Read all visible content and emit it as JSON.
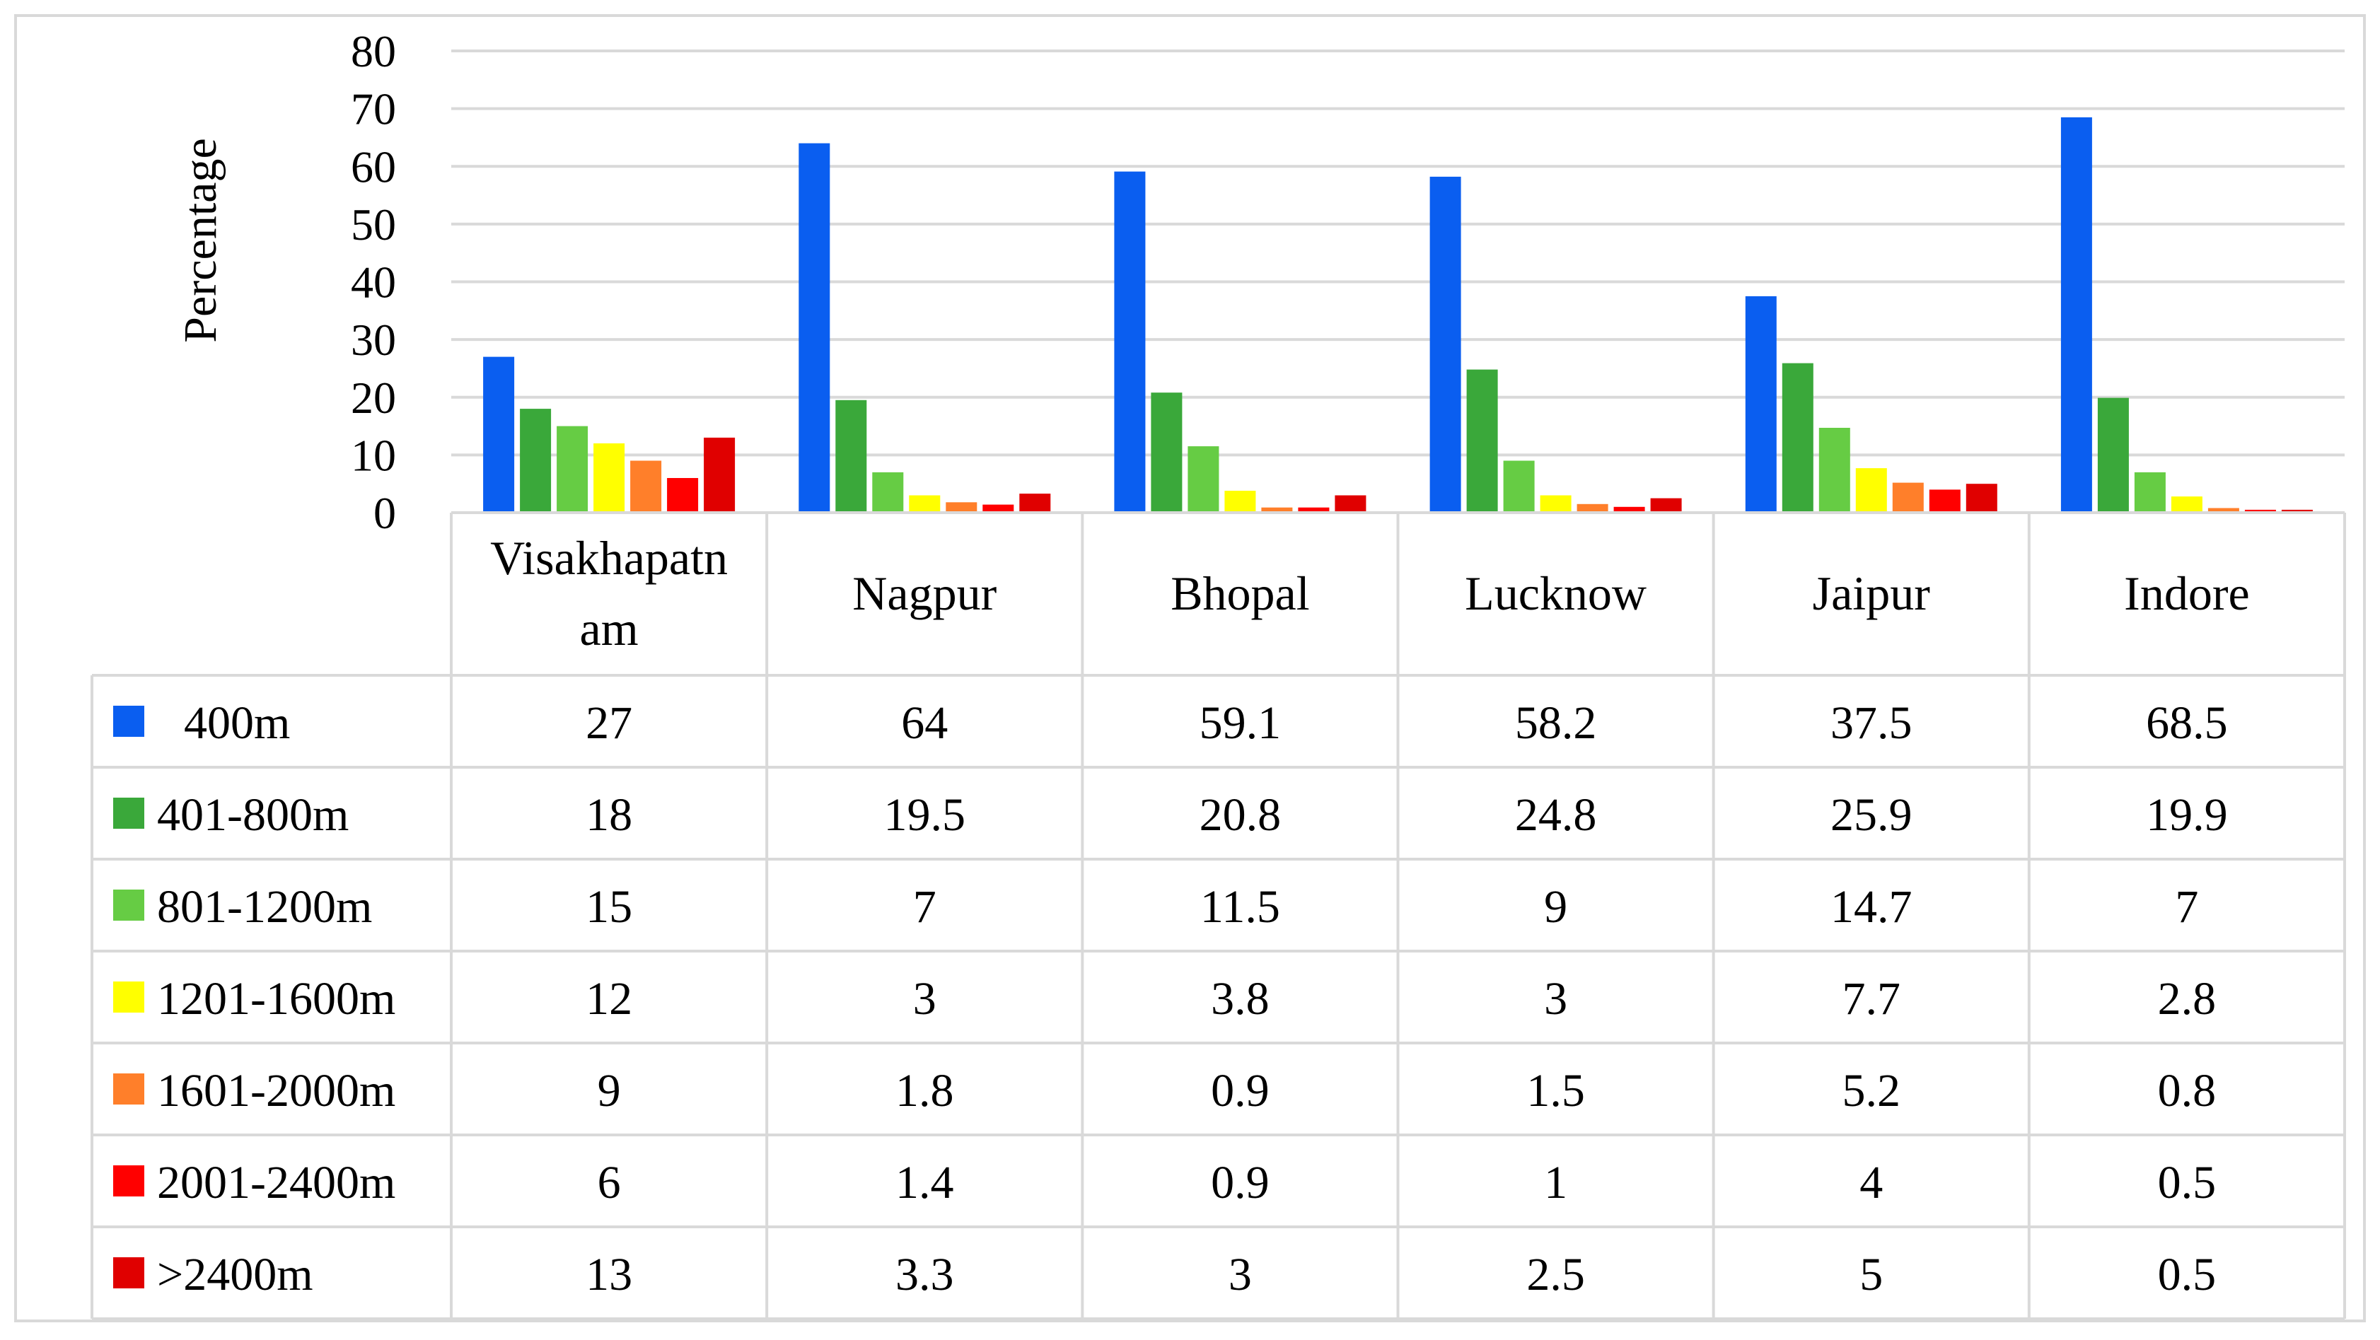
{
  "chart_data": {
    "type": "bar",
    "ylabel": "Percentage",
    "ylim": [
      0,
      80
    ],
    "yticks": [
      0,
      10,
      20,
      30,
      40,
      50,
      60,
      70,
      80
    ],
    "grid": true,
    "legend": "data-table-left",
    "categories": [
      [
        "Visakhapatn",
        "am"
      ],
      [
        "Nagpur"
      ],
      [
        "Bhopal"
      ],
      [
        "Lucknow"
      ],
      [
        "Jaipur"
      ],
      [
        "Indore"
      ]
    ],
    "series": [
      {
        "name": "400m",
        "color": "#0a5ef0",
        "values": [
          27,
          64,
          59.1,
          58.2,
          37.5,
          68.5
        ],
        "labels": [
          "27",
          "64",
          "59.1",
          "58.2",
          "37.5",
          "68.5"
        ]
      },
      {
        "name": "401-800m",
        "color": "#3aa83a",
        "values": [
          18,
          19.5,
          20.8,
          24.8,
          25.9,
          19.9
        ],
        "labels": [
          "18",
          "19.5",
          "20.8",
          "24.8",
          "25.9",
          "19.9"
        ]
      },
      {
        "name": "801-1200m",
        "color": "#66cc44",
        "values": [
          15,
          7,
          11.5,
          9,
          14.7,
          7
        ],
        "labels": [
          "15",
          "7",
          "11.5",
          "9",
          "14.7",
          "7"
        ]
      },
      {
        "name": "1201-1600m",
        "color": "#ffff00",
        "values": [
          12,
          3,
          3.8,
          3,
          7.7,
          2.8
        ],
        "labels": [
          "12",
          "3",
          "3.8",
          "3",
          "7.7",
          "2.8"
        ]
      },
      {
        "name": "1601-2000m",
        "color": "#ff7f2a",
        "values": [
          9,
          1.8,
          0.9,
          1.5,
          5.2,
          0.8
        ],
        "labels": [
          "9",
          "1.8",
          "0.9",
          "1.5",
          "5.2",
          "0.8"
        ]
      },
      {
        "name": "2001-2400m",
        "color": "#ff0000",
        "values": [
          6,
          1.4,
          0.9,
          1,
          4,
          0.5
        ],
        "labels": [
          "6",
          "1.4",
          "0.9",
          "1",
          "4",
          "0.5"
        ]
      },
      {
        "name": ">2400m",
        "color": "#e00000",
        "values": [
          13,
          3.3,
          3,
          2.5,
          5,
          0.5
        ],
        "labels": [
          "13",
          "3.3",
          "3",
          "2.5",
          "5",
          "0.5"
        ]
      }
    ]
  }
}
